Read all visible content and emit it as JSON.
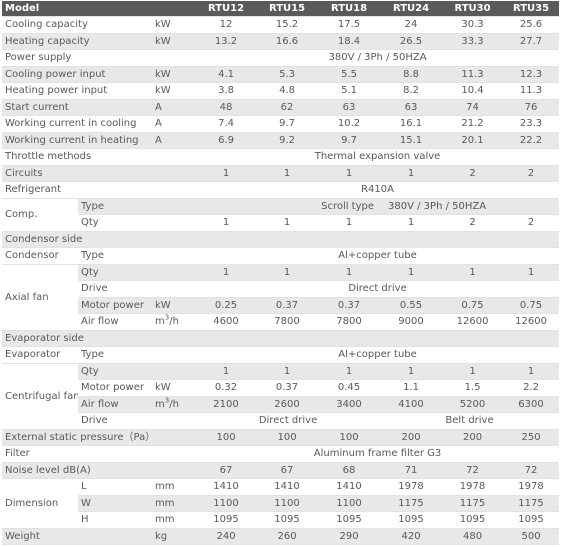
{
  "columns": [
    "RTU12",
    "RTU15",
    "RTU18",
    "RTU24",
    "RTU30",
    "RTU35"
  ],
  "header_label": "Model",
  "rows": {
    "cooling_capacity": {
      "label": "Cooling capacity",
      "unit": "kW",
      "values": [
        "12",
        "15.2",
        "17.5",
        "24",
        "30.3",
        "25.6"
      ]
    },
    "heating_capacity": {
      "label": "Heating capacity",
      "unit": "kW",
      "values": [
        "13.2",
        "16.6",
        "18.4",
        "26.5",
        "33.3",
        "27.7"
      ]
    },
    "power_supply": {
      "label": "Power supply",
      "value": "380V / 3Ph / 50HZA"
    },
    "cooling_power_input": {
      "label": "Cooling power input",
      "unit": "kW",
      "values": [
        "4.1",
        "5.3",
        "5.5",
        "8.8",
        "11.3",
        "12.3"
      ]
    },
    "heating_power_input": {
      "label": "Heating power input",
      "unit": "kW",
      "values": [
        "3.8",
        "4.8",
        "5.1",
        "8.2",
        "10.4",
        "11.3"
      ]
    },
    "start_current": {
      "label": "Start current",
      "unit": "A",
      "values": [
        "48",
        "62",
        "63",
        "63",
        "74",
        "76"
      ]
    },
    "working_current_cooling": {
      "label": "Working current in cooling",
      "unit": "A",
      "values": [
        "7.4",
        "9.7",
        "10.2",
        "16.1",
        "21.2",
        "23.3"
      ]
    },
    "working_current_heating": {
      "label": "Working current in heating",
      "unit": "A",
      "values": [
        "6.9",
        "9.2",
        "9.7",
        "15.1",
        "20.1",
        "22.2"
      ]
    },
    "throttle_methods": {
      "label": "Throttle methods",
      "value": "Thermal expansion valve"
    },
    "circuits": {
      "label": "Circuits",
      "values": [
        "1",
        "1",
        "1",
        "1",
        "2",
        "2"
      ]
    },
    "refrigerant": {
      "label": "Refrigerant",
      "value": "R410A"
    },
    "comp": {
      "label": "Comp.",
      "type_label": "Type",
      "type_value": "Scroll type",
      "type_value2": "380V / 3Ph / 50HZA",
      "qty_label": "Qty",
      "qty_values": [
        "1",
        "1",
        "1",
        "1",
        "2",
        "2"
      ]
    },
    "condensor_side": {
      "label": "Condensor side"
    },
    "condensor": {
      "label": "Condensor",
      "type_label": "Type",
      "type_value": "Al+copper tube"
    },
    "axial_fan": {
      "label": "Axial fan",
      "qty_label": "Qty",
      "qty_values": [
        "1",
        "1",
        "1",
        "1",
        "1",
        "1"
      ],
      "drive_label": "Drive",
      "drive_value": "Direct drive",
      "motor_label": "Motor power",
      "motor_unit": "kW",
      "motor_values": [
        "0.25",
        "0.37",
        "0.37",
        "0.55",
        "0.75",
        "0.75"
      ],
      "air_label": "Air flow",
      "air_unit_base": "m",
      "air_unit_sup": "3",
      "air_unit_tail": "/h",
      "air_values": [
        "4600",
        "7800",
        "7800",
        "9000",
        "12600",
        "12600"
      ]
    },
    "evaporator_side": {
      "label": "Evaporator side"
    },
    "evaporator": {
      "label": "Evaporator",
      "type_label": "Type",
      "type_value": "Al+copper tube"
    },
    "centrifugal_fan": {
      "label": "Centrifugal fan",
      "qty_label": "Qty",
      "qty_values": [
        "1",
        "1",
        "1",
        "1",
        "1",
        "1"
      ],
      "motor_label": "Motor power",
      "motor_unit": "kW",
      "motor_values": [
        "0.32",
        "0.37",
        "0.45",
        "1.1",
        "1.5",
        "2.2"
      ],
      "air_label": "Air flow",
      "air_unit_base": "m",
      "air_unit_sup": "3",
      "air_unit_tail": "/h",
      "air_values": [
        "2100",
        "2600",
        "3400",
        "4100",
        "5200",
        "6300"
      ],
      "drive_label": "Drive",
      "drive_value_a": "Direct drive",
      "drive_value_b": "Belt drive"
    },
    "external_static_pressure": {
      "label": "External static pressure（Pa）",
      "values": [
        "100",
        "100",
        "100",
        "200",
        "200",
        "250"
      ]
    },
    "filter": {
      "label": "Filter",
      "value": "Aluminum frame filter G3"
    },
    "noise_level": {
      "label": "Noise level dB(A)",
      "values": [
        "67",
        "67",
        "68",
        "71",
        "72",
        "72"
      ]
    },
    "dimension": {
      "label": "Dimension",
      "l_label": "L",
      "w_label": "W",
      "h_label": "H",
      "unit": "mm",
      "l_values": [
        "1410",
        "1410",
        "1410",
        "1978",
        "1978",
        "1978"
      ],
      "w_values": [
        "1100",
        "1100",
        "1100",
        "1175",
        "1175",
        "1175"
      ],
      "h_values": [
        "1095",
        "1095",
        "1095",
        "1095",
        "1095",
        "1095"
      ]
    },
    "weight": {
      "label": "Weight",
      "unit": "kg",
      "values": [
        "240",
        "260",
        "290",
        "420",
        "480",
        "500"
      ]
    }
  }
}
